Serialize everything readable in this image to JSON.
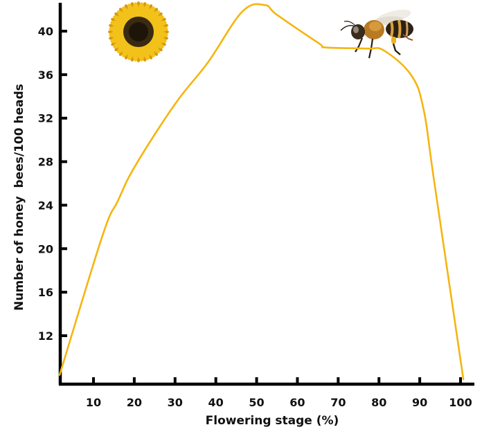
{
  "chart_data": {
    "type": "line",
    "title": "",
    "xlabel": "Flowering stage (%)",
    "ylabel": "Number of honey  bees/100 heads",
    "xlim": [
      2,
      104
    ],
    "ylim": [
      8,
      42.5
    ],
    "x_ticks": [
      10,
      20,
      30,
      40,
      50,
      60,
      70,
      80,
      90,
      100
    ],
    "y_ticks": [
      12,
      16,
      20,
      24,
      28,
      32,
      36,
      40
    ],
    "grid": false,
    "legend": null,
    "series": [
      {
        "name": "Honey bees",
        "color": "#F5B50F",
        "x": [
          1.7,
          12.2,
          16,
          20.2,
          30,
          38,
          46.5,
          52,
          55,
          65.2,
          67,
          77,
          81.3,
          88,
          91,
          93.5,
          100.7
        ],
        "y": [
          8.4,
          21.2,
          24.4,
          27.6,
          33.3,
          37.1,
          41.8,
          42.4,
          41.5,
          38.9,
          38.5,
          38.4,
          38.2,
          35.9,
          32.7,
          26.3,
          8.0
        ]
      }
    ],
    "annotations": [
      "sunflower-illustration",
      "honey-bee-illustration"
    ]
  },
  "axis": {
    "x_title": "Flowering stage (%)",
    "y_title": "Number of honey  bees/100 heads",
    "x_tick_labels": [
      "10",
      "20",
      "30",
      "40",
      "50",
      "60",
      "70",
      "80",
      "90",
      "100"
    ],
    "y_tick_labels": [
      "12",
      "16",
      "20",
      "24",
      "28",
      "32",
      "36",
      "40"
    ]
  },
  "colors": {
    "line": "#F5B50F",
    "axis": "#000000",
    "petal": "#F2C21A",
    "petal_dark": "#D99A0B",
    "disc": "#3A2A12",
    "disc_inner": "#1E150A"
  }
}
